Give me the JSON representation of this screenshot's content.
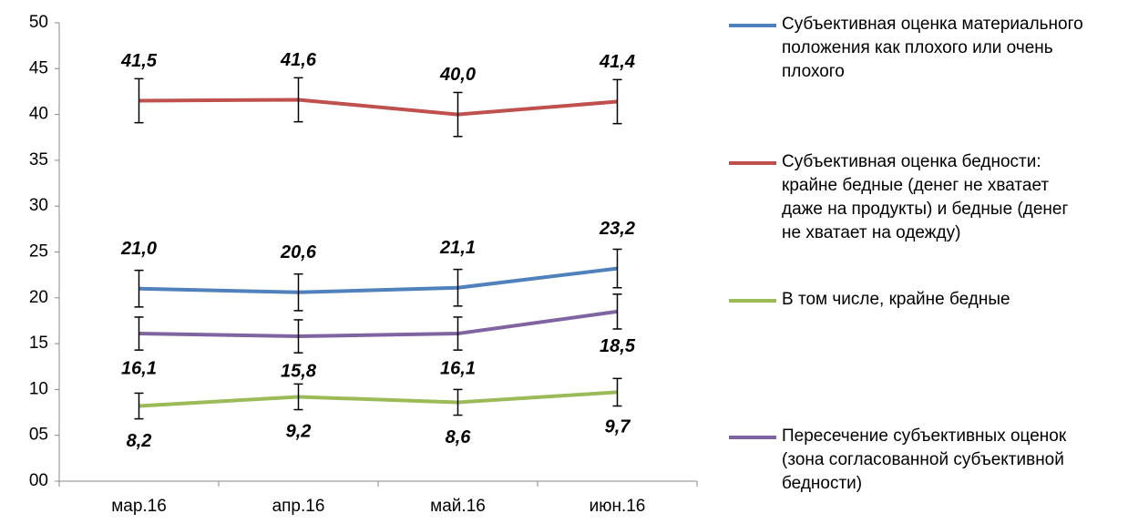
{
  "chart_data": {
    "type": "line",
    "categories": [
      "мар.16",
      "апр.16",
      "май.16",
      "июн.16"
    ],
    "ylim": [
      0,
      50
    ],
    "yticks": [
      {
        "value": 0,
        "label": "00"
      },
      {
        "value": 5,
        "label": "05"
      },
      10,
      15,
      20,
      25,
      30,
      35,
      40,
      45,
      50
    ],
    "error_bars": true,
    "legend": "right",
    "series": [
      {
        "name": "Субъективная оценка материального положения как плохого или очень плохого",
        "color": "#4f81bd",
        "values": [
          21.0,
          20.6,
          21.1,
          23.2
        ],
        "value_labels": [
          "21,0",
          "20,6",
          "21,1",
          "23,2"
        ],
        "errors": [
          2,
          2,
          2,
          2.1
        ],
        "label_position": "above"
      },
      {
        "name": "Субъективная оценка бедности: крайне бедные (денег не хватает даже на продукты) и бедные (денег не хватает на одежду)",
        "color": "#c0504d",
        "values": [
          41.5,
          41.6,
          40.0,
          41.4
        ],
        "value_labels": [
          "41,5",
          "41,6",
          "40,0",
          "41,4"
        ],
        "errors": [
          2.4,
          2.4,
          2.4,
          2.4
        ],
        "label_position": "above"
      },
      {
        "name": "В том числе, крайне бедные",
        "color": "#9bbb59",
        "values": [
          8.2,
          9.2,
          8.6,
          9.7
        ],
        "value_labels": [
          "8,2",
          "9,2",
          "8,6",
          "9,7"
        ],
        "errors": [
          1.4,
          1.4,
          1.4,
          1.5
        ],
        "label_position": "below"
      },
      {
        "name": "Пересечение субъективных оценок (зона согласованной субъективной бедности)",
        "color": "#8064a2",
        "values": [
          16.1,
          15.8,
          16.1,
          18.5
        ],
        "value_labels": [
          "16,1",
          "15,8",
          "16,1",
          "18,5"
        ],
        "errors": [
          1.8,
          1.8,
          1.8,
          1.9
        ],
        "label_position": "below"
      }
    ]
  }
}
